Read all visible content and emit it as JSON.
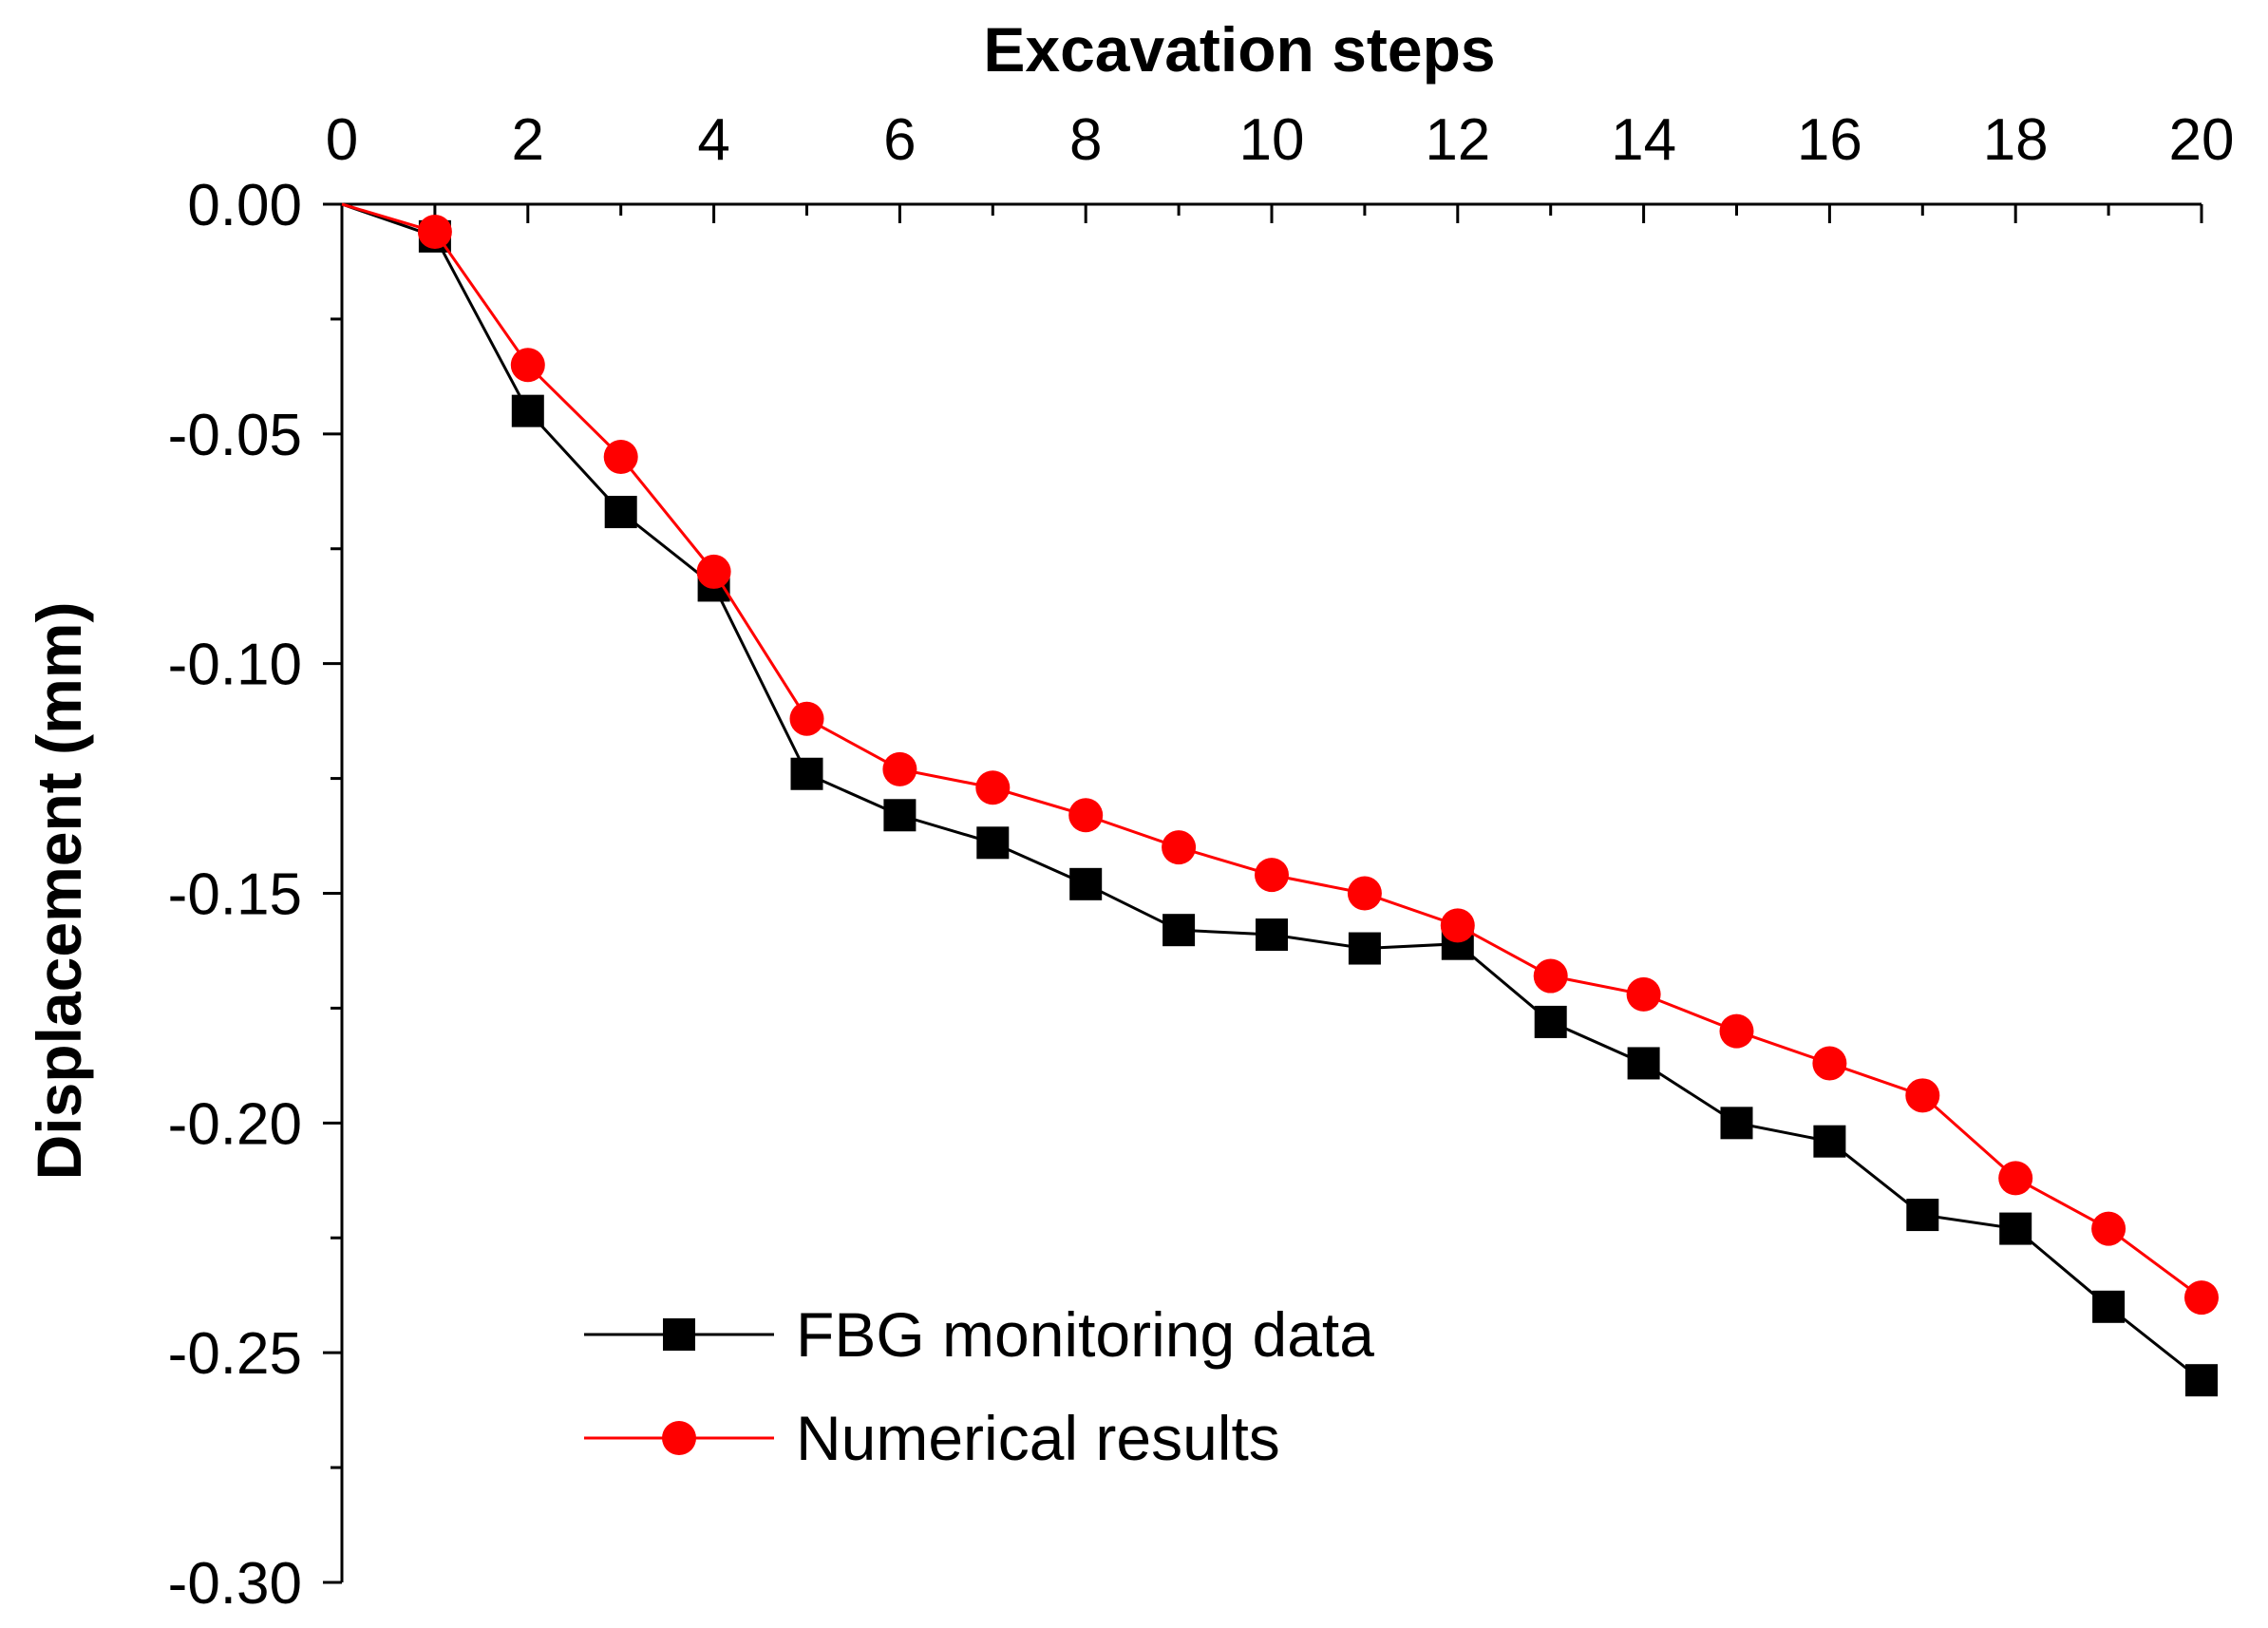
{
  "chart_data": {
    "type": "line",
    "title": "",
    "xlabel": "Excavation steps",
    "ylabel": "Displacement (mm)",
    "xlim": [
      0,
      20
    ],
    "ylim": [
      -0.3,
      0.0
    ],
    "x_axis_position": "top",
    "x_major_ticks": [
      0,
      2,
      4,
      6,
      8,
      10,
      12,
      14,
      16,
      18,
      20
    ],
    "x_tick_labels": [
      "0",
      "2",
      "4",
      "6",
      "8",
      "10",
      "12",
      "14",
      "16",
      "18",
      "20"
    ],
    "y_major_ticks": [
      0.0,
      -0.05,
      -0.1,
      -0.15,
      -0.2,
      -0.25,
      -0.3
    ],
    "y_tick_labels": [
      "0.00",
      "-0.05",
      "-0.10",
      "-0.15",
      "-0.20",
      "-0.25",
      "-0.30"
    ],
    "grid": false,
    "legend_position": "bottom-left",
    "x": [
      0,
      1,
      2,
      3,
      4,
      5,
      6,
      7,
      8,
      9,
      10,
      11,
      12,
      13,
      14,
      15,
      16,
      17,
      18,
      19,
      20
    ],
    "series": [
      {
        "name": "FBG monitoring data",
        "color": "#000000",
        "marker": "square",
        "values": [
          0.0,
          -0.007,
          -0.045,
          -0.067,
          -0.083,
          -0.124,
          -0.133,
          -0.139,
          -0.148,
          -0.158,
          -0.159,
          -0.162,
          -0.161,
          -0.178,
          -0.187,
          -0.2,
          -0.204,
          -0.22,
          -0.223,
          -0.24,
          -0.256
        ]
      },
      {
        "name": "Numerical results",
        "color": "#ff0000",
        "marker": "circle",
        "values": [
          0.0,
          -0.006,
          -0.035,
          -0.055,
          -0.08,
          -0.112,
          -0.123,
          -0.127,
          -0.133,
          -0.14,
          -0.146,
          -0.15,
          -0.157,
          -0.168,
          -0.172,
          -0.18,
          -0.187,
          -0.194,
          -0.212,
          -0.223,
          -0.238
        ]
      }
    ]
  }
}
